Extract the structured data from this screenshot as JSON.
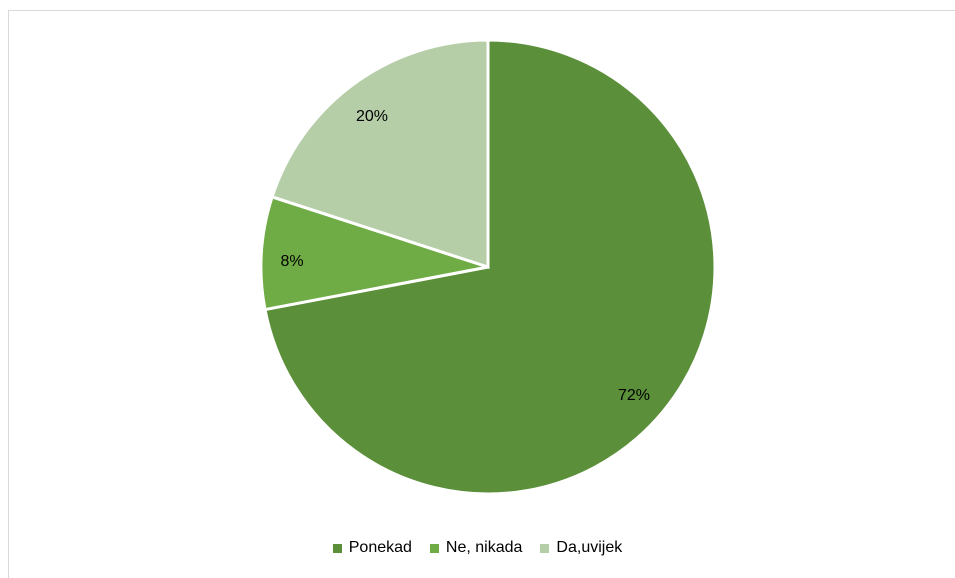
{
  "chart_data": {
    "type": "pie",
    "title": "",
    "categories": [
      "Ponekad",
      "Ne, nikada",
      "Da,uvijek"
    ],
    "values": [
      72,
      8,
      20
    ],
    "labels": [
      "72%",
      "8%",
      "20%"
    ],
    "colors": [
      "#5b8f3a",
      "#6fac46",
      "#b5cea8"
    ],
    "start_angle_deg": 0,
    "direction": "clockwise",
    "legend_position": "bottom"
  },
  "legend": {
    "items": [
      {
        "label": "Ponekad",
        "color": "#5b8f3a"
      },
      {
        "label": "Ne, nikada",
        "color": "#6fac46"
      },
      {
        "label": "Da,uvijek",
        "color": "#b5cea8"
      }
    ]
  }
}
